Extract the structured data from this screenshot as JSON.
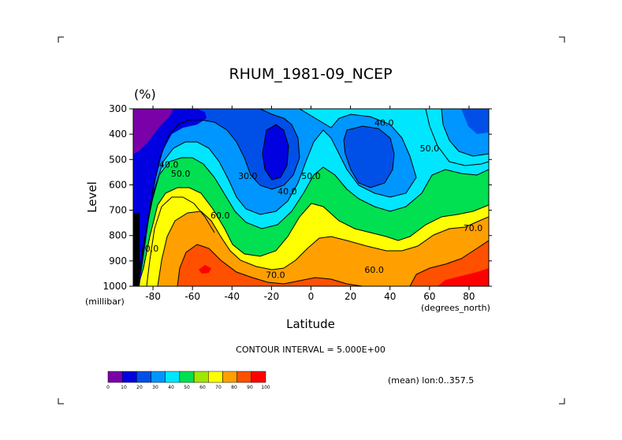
{
  "chart_data": {
    "type": "heatmap",
    "title": "RHUM_1981-09_NCEP",
    "units": "(%)",
    "xlabel": "Latitude",
    "ylabel": "Level",
    "x_units": "(degrees_north)",
    "y_units": "(millibar)",
    "xlim": [
      -90,
      90
    ],
    "ylim": [
      1000,
      300
    ],
    "x_ticks": [
      -80,
      -60,
      -40,
      -20,
      0,
      20,
      40,
      60,
      80
    ],
    "x_tick_labels": [
      "-80",
      "-60",
      "-40",
      "-20",
      "0",
      "20",
      "40",
      "60",
      "80"
    ],
    "y_ticks": [
      300,
      400,
      500,
      600,
      700,
      800,
      900,
      1000
    ],
    "y_tick_labels": [
      "300",
      "400",
      "500",
      "600",
      "700",
      "800",
      "900",
      "1000"
    ],
    "contour_interval_text": "CONTOUR INTERVAL = 5.000E+00",
    "mean_text": "(mean) lon:0..357.5",
    "colorbar": {
      "levels": [
        "0",
        "10",
        "20",
        "30",
        "40",
        "50",
        "60",
        "70",
        "80",
        "90",
        "100"
      ],
      "colors": [
        "#7a00a8",
        "#0000e0",
        "#0050e8",
        "#0096ff",
        "#00e6ff",
        "#00e050",
        "#a0e600",
        "#ffff00",
        "#ffa000",
        "#ff5000",
        "#ff0000"
      ]
    },
    "contour_labels": [
      {
        "text": "40.0",
        "lat": 37,
        "lev": 355
      },
      {
        "text": "50.0",
        "lat": 60,
        "lev": 455
      },
      {
        "text": "40.0",
        "lat": -72,
        "lev": 520
      },
      {
        "text": "50.0",
        "lat": -66,
        "lev": 555
      },
      {
        "text": "30.0",
        "lat": -32,
        "lev": 565
      },
      {
        "text": "40.0",
        "lat": -12,
        "lev": 625
      },
      {
        "text": "50.0",
        "lat": 0,
        "lev": 565
      },
      {
        "text": "60.0",
        "lat": -46,
        "lev": 720
      },
      {
        "text": "70.0",
        "lat": 82,
        "lev": 770
      },
      {
        "text": "30.0",
        "lat": -82,
        "lev": 850
      },
      {
        "text": "60.0",
        "lat": 32,
        "lev": 935
      },
      {
        "text": "70.0",
        "lat": -18,
        "lev": 955
      }
    ]
  }
}
